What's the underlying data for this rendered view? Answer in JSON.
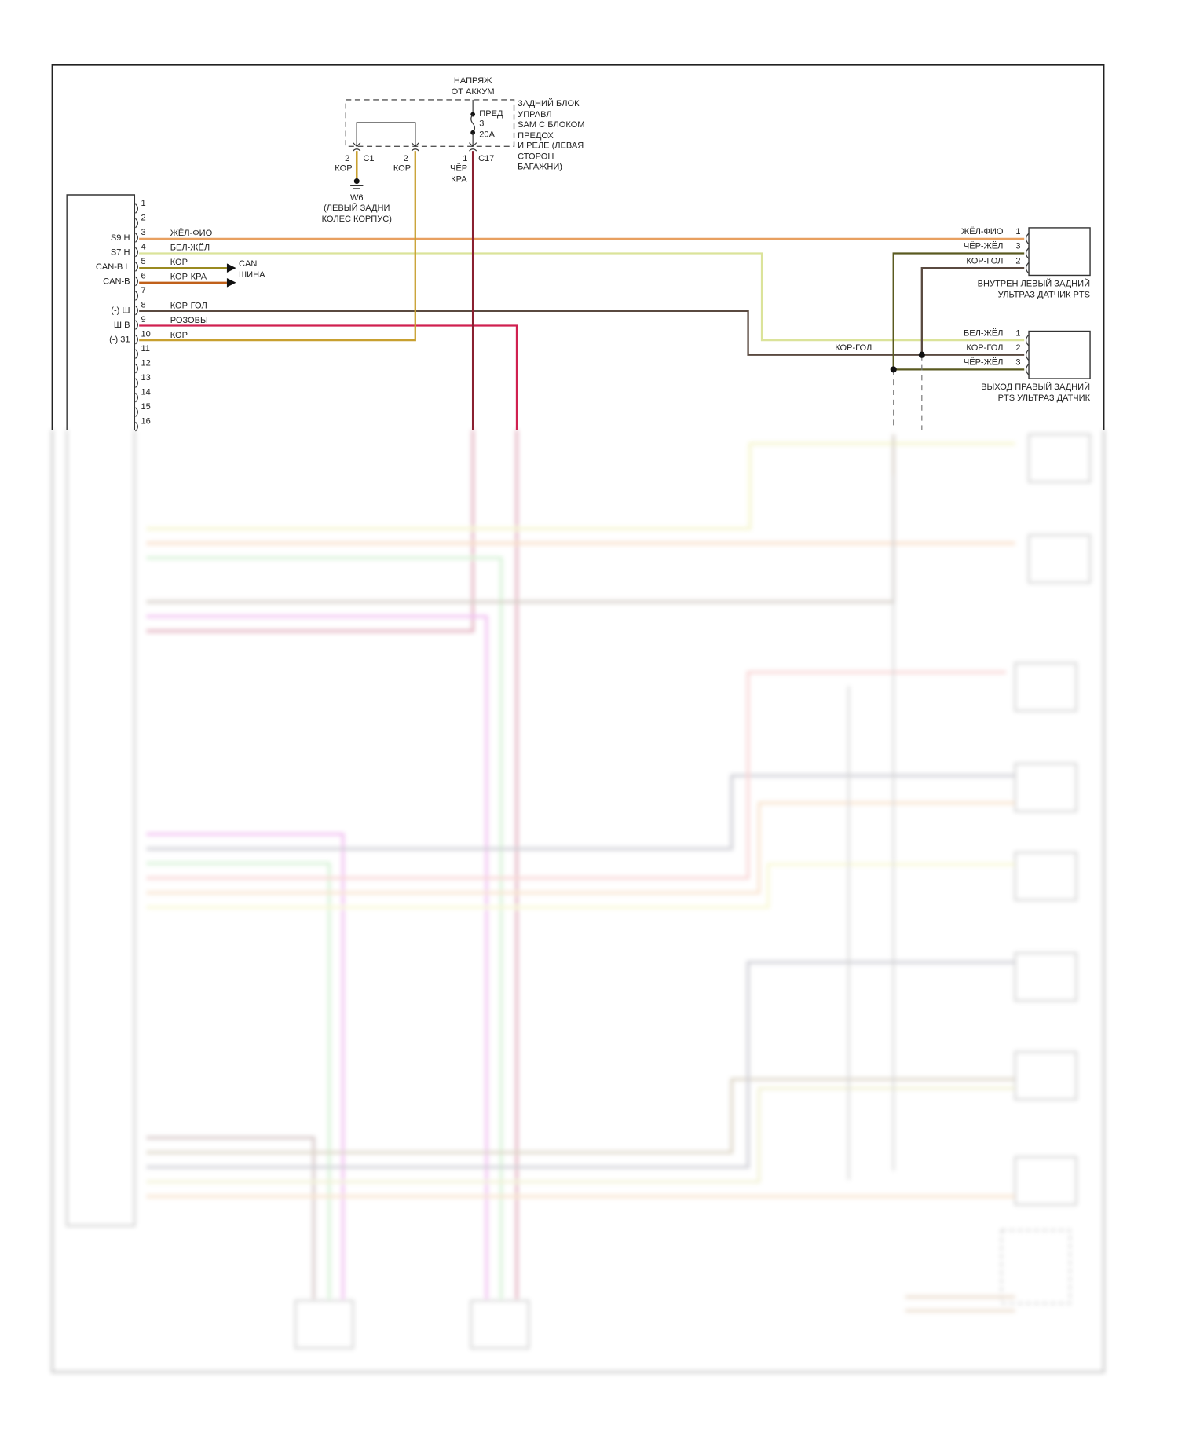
{
  "top_source": {
    "line1": "НАПРЯЖ",
    "line2": "ОТ АККУМ"
  },
  "fuse": {
    "name": "ПРЕД",
    "number": "3",
    "rating": "20A"
  },
  "sam_module": {
    "lines": [
      "ЗАДНИЙ БЛОК",
      "УПРАВЛ",
      "SAM С БЛОКОМ",
      "ПРЕДОХ",
      "И РЕЛЕ (ЛЕВАЯ",
      "СТОРОН",
      "БАГАЖНИ)"
    ]
  },
  "connectors": {
    "c1_pin_a": "2",
    "c1_name": "C1",
    "c1_wire_a": "КОР",
    "c1_pin_b": "2",
    "c1_wire_b": "КОР",
    "c17_pin": "1",
    "c17_name": "C17",
    "c17_wire_1": "ЧЁР",
    "c17_wire_2": "КРА"
  },
  "ground": {
    "name": "W6",
    "line1": "(ЛЕВЫЙ ЗАДНИ",
    "line2": "КОЛЕС КОРПУС)"
  },
  "module_pins": {
    "numbers": [
      "1",
      "2",
      "3",
      "4",
      "5",
      "6",
      "7",
      "8",
      "9",
      "10",
      "11",
      "12",
      "13",
      "14",
      "15",
      "16"
    ],
    "functions": {
      "3": "S9 H",
      "4": "S7 H",
      "5": "CAN-B L",
      "6": "CAN-B",
      "8": "(-) Ш",
      "9": "Ш В",
      "10": "(-) 31"
    },
    "wires": {
      "3": "ЖЁЛ-ФИО",
      "4": "БЕЛ-ЖЁЛ",
      "5": "КОР",
      "6": "КОР-КРА",
      "8": "КОР-ГОЛ",
      "9": "РОЗОВЫ",
      "10": "КОР"
    }
  },
  "can_bus": {
    "line1": "CAN",
    "line2": "ШИНА"
  },
  "junction_label": "КОР-ГОЛ",
  "sensor_left": {
    "pins": [
      {
        "wire": "ЖЁЛ-ФИО",
        "pin": "1"
      },
      {
        "wire": "ЧЁР-ЖЁЛ",
        "pin": "3"
      },
      {
        "wire": "КОР-ГОЛ",
        "pin": "2"
      }
    ],
    "caption1": "ВНУТРЕН ЛЕВЫЙ ЗАДНИЙ",
    "caption2": "УЛЬТРАЗ ДАТЧИК PTS"
  },
  "sensor_right": {
    "pins": [
      {
        "wire": "БЕЛ-ЖЁЛ",
        "pin": "1"
      },
      {
        "wire": "КОР-ГОЛ",
        "pin": "2"
      },
      {
        "wire": "ЧЁР-ЖЁЛ",
        "pin": "3"
      }
    ],
    "caption1": "ВЫХОД ПРАВЫЙ ЗАДНИЙ",
    "caption2": "PTS УЛЬТРАЗ ДАТЧИК"
  },
  "wire_colors": {
    "yel_vio": "#e8a060",
    "wht_yel": "#d8e090",
    "brn": "#b8962a",
    "brn_red": "#c0601a",
    "brn_blu": "#5a4a40",
    "pink": "#d02050",
    "blk_red": "#8a2030",
    "blk_yel": "#5a5a20"
  }
}
